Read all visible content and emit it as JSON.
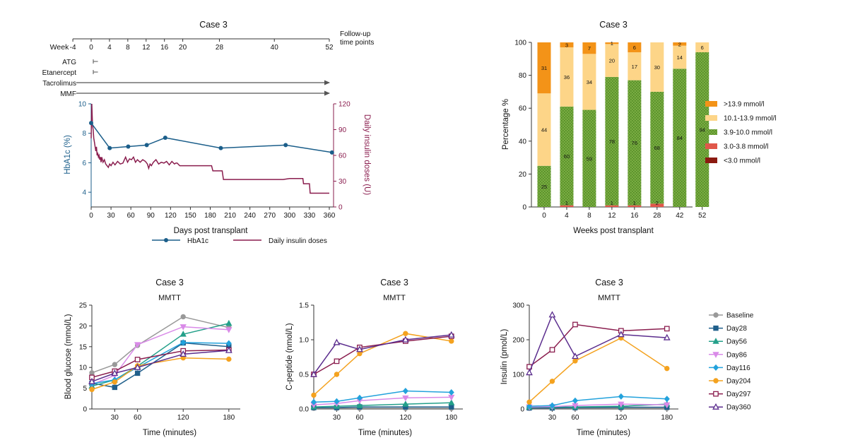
{
  "chart_data": [
    {
      "type": "line",
      "title": "Case 3",
      "xlabel": "Days post transplant",
      "ylabel": "HbA1c (%)",
      "ylabel_right": "Daily insulin doses (U)",
      "xlim": [
        0,
        360
      ],
      "ylim": [
        3,
        10
      ],
      "ylim_right": [
        0,
        120
      ],
      "x_ticks": [
        0,
        30,
        60,
        90,
        120,
        150,
        180,
        210,
        240,
        270,
        300,
        330,
        360
      ],
      "y_ticks": [
        4,
        6,
        8,
        10
      ],
      "y_ticks_right": [
        0,
        30,
        60,
        90,
        120
      ],
      "week_label": "Week",
      "week_ticks": [
        -4,
        0,
        4,
        8,
        12,
        16,
        20,
        28,
        40,
        52
      ],
      "followup_label_1": "Follow-up",
      "followup_label_2": "time points",
      "treatments": [
        {
          "name": "ATG",
          "start_day": 0,
          "end_day": 7
        },
        {
          "name": "Etanercept",
          "start_day": 0,
          "end_day": 7
        },
        {
          "name": "Tacrolimus",
          "start_day": -28,
          "end_day": 364
        },
        {
          "name": "MMF",
          "start_day": -28,
          "end_day": 364
        }
      ],
      "legend_position": "bottom",
      "series": [
        {
          "name": "HbA1c",
          "axis": "left",
          "color": "#1b5e8a",
          "x": [
            0,
            28,
            56,
            84,
            112,
            196,
            294,
            364
          ],
          "y": [
            8.7,
            7.0,
            7.1,
            7.2,
            7.7,
            7.0,
            7.2,
            6.7
          ]
        },
        {
          "name": "Daily insulin doses",
          "axis": "right",
          "color": "#8a1d4e",
          "x": [
            0,
            1,
            2,
            3,
            4,
            5,
            6,
            7,
            8,
            9,
            10,
            11,
            12,
            13,
            14,
            15,
            16,
            18,
            20,
            22,
            24,
            26,
            28,
            30,
            33,
            36,
            40,
            44,
            48,
            52,
            55,
            58,
            61,
            64,
            67,
            70,
            74,
            78,
            82,
            85,
            87,
            89,
            91,
            94,
            98,
            102,
            106,
            110,
            114,
            118,
            122,
            126,
            128,
            130,
            134,
            140,
            150,
            160,
            170,
            176,
            180,
            182,
            184,
            186,
            198,
            200,
            210,
            240,
            270,
            280,
            290,
            300,
            310,
            315,
            320,
            321,
            330,
            331,
            340,
            360
          ],
          "y": [
            80,
            120,
            95,
            90,
            80,
            75,
            70,
            65,
            70,
            60,
            62,
            58,
            60,
            55,
            58,
            52,
            58,
            52,
            55,
            50,
            48,
            46,
            50,
            48,
            52,
            49,
            53,
            50,
            51,
            58,
            52,
            56,
            55,
            58,
            52,
            55,
            52,
            55,
            53,
            50,
            45,
            50,
            48,
            52,
            55,
            50,
            52,
            51,
            53,
            49,
            53,
            50,
            51,
            51,
            48,
            48,
            48,
            48,
            48,
            48,
            48,
            48,
            42,
            42,
            42,
            32,
            32,
            32,
            32,
            32,
            32,
            33,
            33,
            33,
            33,
            27,
            27,
            16,
            16,
            16
          ]
        }
      ]
    },
    {
      "type": "bar",
      "stacked": true,
      "title": "Case 3",
      "xlabel": "Weeks post transplant",
      "ylabel": "Percentage %",
      "ylim": [
        0,
        100
      ],
      "y_ticks": [
        0,
        20,
        40,
        60,
        80,
        100
      ],
      "categories": [
        "0",
        "4",
        "8",
        "12",
        "16",
        "28",
        "42",
        "52"
      ],
      "legend_position": "right",
      "series": [
        {
          "name": "<3.0  mmol/l",
          "color": "#8b1a10",
          "values": [
            0,
            0,
            0,
            0,
            0,
            0,
            0,
            0
          ]
        },
        {
          "name": "3.0-3.8 mmol/l",
          "color": "#e0574a",
          "values": [
            0,
            1,
            0,
            1,
            1,
            2,
            0,
            0
          ]
        },
        {
          "name": "3.9-10.0 mmol/l",
          "color": "#79ab42",
          "values": [
            25,
            60,
            59,
            78,
            76,
            68,
            84,
            94
          ]
        },
        {
          "name": "10.1-13.9 mmol/l",
          "color": "#fdd588",
          "values": [
            44,
            36,
            34,
            20,
            17,
            30,
            14,
            6
          ]
        },
        {
          "name": ">13.9 mmol/l",
          "color": "#f39318",
          "values": [
            31,
            3,
            7,
            1,
            6,
            0,
            2,
            0
          ]
        }
      ],
      "labels": [
        {
          "category": "0",
          "series": ">13.9 mmol/l",
          "text": "31"
        },
        {
          "category": "0",
          "series": "10.1-13.9 mmol/l",
          "text": "44"
        },
        {
          "category": "0",
          "series": "3.9-10.0 mmol/l",
          "text": "25"
        },
        {
          "category": "4",
          "series": ">13.9 mmol/l",
          "text": "3"
        },
        {
          "category": "4",
          "series": "10.1-13.9 mmol/l",
          "text": "36"
        },
        {
          "category": "4",
          "series": "3.9-10.0 mmol/l",
          "text": "60"
        },
        {
          "category": "4",
          "series": "3.0-3.8 mmol/l",
          "text": "1"
        },
        {
          "category": "8",
          "series": ">13.9 mmol/l",
          "text": "7"
        },
        {
          "category": "8",
          "series": "10.1-13.9 mmol/l",
          "text": "34"
        },
        {
          "category": "8",
          "series": "3.9-10.0 mmol/l",
          "text": "59"
        },
        {
          "category": "12",
          "series": ">13.9 mmol/l",
          "text": "1"
        },
        {
          "category": "12",
          "series": "10.1-13.9 mmol/l",
          "text": "20"
        },
        {
          "category": "12",
          "series": "3.9-10.0 mmol/l",
          "text": "78"
        },
        {
          "category": "12",
          "series": "3.0-3.8 mmol/l",
          "text": "1"
        },
        {
          "category": "16",
          "series": ">13.9 mmol/l",
          "text": "6"
        },
        {
          "category": "16",
          "series": "10.1-13.9 mmol/l",
          "text": "17"
        },
        {
          "category": "16",
          "series": "3.9-10.0 mmol/l",
          "text": "76"
        },
        {
          "category": "16",
          "series": "3.0-3.8 mmol/l",
          "text": "1"
        },
        {
          "category": "28",
          "series": "10.1-13.9 mmol/l",
          "text": "30"
        },
        {
          "category": "28",
          "series": "3.9-10.0 mmol/l",
          "text": "68"
        },
        {
          "category": "28",
          "series": "3.0-3.8 mmol/l",
          "text": "2"
        },
        {
          "category": "42",
          "series": ">13.9 mmol/l",
          "text": "2"
        },
        {
          "category": "42",
          "series": "10.1-13.9 mmol/l",
          "text": "14"
        },
        {
          "category": "42",
          "series": "3.9-10.0 mmol/l",
          "text": "84"
        },
        {
          "category": "52",
          "series": "10.1-13.9 mmol/l",
          "text": "6"
        },
        {
          "category": "52",
          "series": "3.9-10.0 mmol/l",
          "text": "94"
        }
      ]
    },
    {
      "type": "line",
      "title": "Case 3",
      "subtitle": "MMTT",
      "xlabel": "Time (minutes)",
      "ylabel": "Blood glucose (mmol/L)",
      "x": [
        0,
        30,
        60,
        120,
        180
      ],
      "x_ticks": [
        30,
        60,
        120,
        180
      ],
      "xlim": [
        0,
        195
      ],
      "ylim": [
        0,
        25
      ],
      "y_ticks": [
        0,
        5,
        10,
        15,
        20,
        25
      ],
      "series": [
        {
          "name": "Baseline",
          "values": [
            8.7,
            10.7,
            15.3,
            22.2,
            19.6
          ]
        },
        {
          "name": "Day28",
          "values": [
            6.2,
            5.2,
            8.6,
            15.9,
            15.0
          ]
        },
        {
          "name": "Day56",
          "values": [
            5.5,
            7.0,
            10.3,
            18.0,
            20.6
          ]
        },
        {
          "name": "Day86",
          "values": [
            5.9,
            8.1,
            15.5,
            19.8,
            19.1
          ]
        },
        {
          "name": "Day116",
          "values": [
            6.1,
            7.0,
            10.0,
            16.0,
            15.8
          ]
        },
        {
          "name": "Day204",
          "values": [
            4.7,
            6.5,
            10.4,
            12.3,
            12.0
          ]
        },
        {
          "name": "Day297",
          "values": [
            7.6,
            9.1,
            11.9,
            14.0,
            14.2
          ]
        },
        {
          "name": "Day360",
          "values": [
            6.6,
            8.6,
            10.0,
            13.2,
            14.1
          ]
        }
      ]
    },
    {
      "type": "line",
      "title": "Case 3",
      "subtitle": "MMTT",
      "xlabel": "Time (minutes)",
      "ylabel": "C-peptide (nmol/L)",
      "x": [
        0,
        30,
        60,
        120,
        180
      ],
      "x_ticks": [
        30,
        60,
        120,
        180
      ],
      "xlim": [
        0,
        195
      ],
      "ylim": [
        0,
        1.5
      ],
      "y_ticks": [
        0.0,
        0.5,
        1.0,
        1.5
      ],
      "y_tick_labels": [
        "0.0",
        "0.5",
        "1.0",
        "1.5"
      ],
      "series": [
        {
          "name": "Baseline",
          "values": [
            0.01,
            0.01,
            0.01,
            0.01,
            0.01
          ]
        },
        {
          "name": "Day28",
          "values": [
            0.02,
            0.02,
            0.03,
            0.03,
            0.03
          ]
        },
        {
          "name": "Day56",
          "values": [
            0.03,
            0.04,
            0.05,
            0.07,
            0.09
          ]
        },
        {
          "name": "Day86",
          "values": [
            0.06,
            0.08,
            0.12,
            0.16,
            0.17
          ]
        },
        {
          "name": "Day116",
          "values": [
            0.1,
            0.11,
            0.16,
            0.26,
            0.24
          ]
        },
        {
          "name": "Day204",
          "values": [
            0.2,
            0.5,
            0.8,
            1.09,
            0.98
          ]
        },
        {
          "name": "Day297",
          "values": [
            0.5,
            0.69,
            0.89,
            0.98,
            1.05
          ]
        },
        {
          "name": "Day360",
          "values": [
            0.5,
            0.96,
            0.86,
            1.0,
            1.07
          ]
        }
      ]
    },
    {
      "type": "line",
      "title": "Case 3",
      "subtitle": "MMTT",
      "xlabel": "Time (minutes)",
      "ylabel": "Insulin (pmol/L)",
      "x": [
        0,
        30,
        60,
        120,
        180
      ],
      "x_ticks": [
        30,
        60,
        120,
        180
      ],
      "xlim": [
        0,
        195
      ],
      "ylim": [
        0,
        300
      ],
      "y_ticks": [
        0,
        100,
        200,
        300
      ],
      "legend_position": "right",
      "series": [
        {
          "name": "Baseline",
          "values": [
            2,
            2,
            2,
            2,
            2
          ]
        },
        {
          "name": "Day28",
          "values": [
            3,
            3,
            4,
            5,
            5
          ]
        },
        {
          "name": "Day56",
          "values": [
            5,
            6,
            6,
            8,
            14
          ]
        },
        {
          "name": "Day86",
          "values": [
            6,
            7,
            10,
            14,
            12
          ]
        },
        {
          "name": "Day116",
          "values": [
            8,
            10,
            24,
            36,
            29
          ]
        },
        {
          "name": "Day204",
          "values": [
            20,
            80,
            139,
            205,
            117
          ]
        },
        {
          "name": "Day297",
          "values": [
            122,
            171,
            244,
            226,
            232
          ]
        },
        {
          "name": "Day360",
          "values": [
            105,
            272,
            152,
            215,
            206
          ]
        }
      ]
    }
  ],
  "series_styles": {
    "Baseline": {
      "color": "#999999",
      "marker": "circle",
      "fill": true
    },
    "Day28": {
      "color": "#1f5f8b",
      "marker": "square",
      "fill": true
    },
    "Day56": {
      "color": "#24a08a",
      "marker": "triangle",
      "fill": true
    },
    "Day86": {
      "color": "#d98ae8",
      "marker": "triangle-down",
      "fill": true
    },
    "Day116": {
      "color": "#23a2dc",
      "marker": "diamond",
      "fill": true
    },
    "Day204": {
      "color": "#f4a21f",
      "marker": "circle",
      "fill": true
    },
    "Day297": {
      "color": "#8a1d4e",
      "marker": "square",
      "fill": false
    },
    "Day360": {
      "color": "#5b2d8e",
      "marker": "triangle",
      "fill": false
    }
  }
}
